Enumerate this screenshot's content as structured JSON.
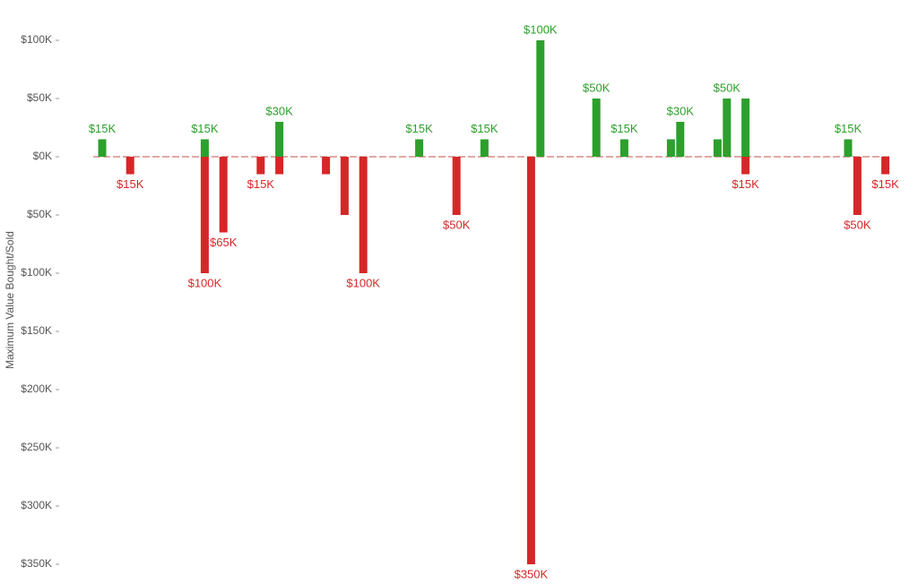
{
  "chart_data": {
    "type": "bar",
    "y_label": "Maximum Value Bought/Sold",
    "categories": [
      null,
      null,
      null,
      null,
      null,
      null,
      null,
      null,
      null,
      null,
      null,
      null,
      null,
      null,
      null,
      null,
      null,
      null,
      null,
      null,
      null,
      null,
      null,
      null,
      null,
      null,
      null,
      null,
      null,
      null,
      null,
      null,
      null,
      null,
      null,
      null,
      null,
      null,
      null,
      null,
      null,
      null,
      null,
      null,
      null,
      null,
      null,
      null,
      null,
      null,
      null,
      null,
      null,
      null,
      null,
      null,
      null,
      null,
      null,
      null,
      null,
      null,
      null,
      null,
      null,
      null,
      null,
      null,
      null,
      null,
      null,
      null,
      null,
      null,
      null,
      null,
      null,
      null,
      null,
      null,
      null,
      null,
      null,
      null,
      null
    ],
    "series": [
      {
        "color": "#2ca02c",
        "values": [
          15000,
          null,
          null,
          null,
          null,
          null,
          null,
          null,
          null,
          null,
          null,
          15000,
          null,
          null,
          null,
          null,
          null,
          null,
          null,
          30000,
          null,
          null,
          null,
          null,
          null,
          null,
          null,
          null,
          null,
          null,
          null,
          null,
          null,
          null,
          15000,
          null,
          null,
          null,
          null,
          null,
          null,
          15000,
          null,
          null,
          null,
          null,
          null,
          100000,
          null,
          null,
          null,
          null,
          null,
          50000,
          null,
          null,
          15000,
          null,
          null,
          null,
          null,
          15000,
          30000,
          null,
          null,
          null,
          15000,
          50000,
          null,
          50000,
          null,
          null,
          null,
          null,
          null,
          null,
          null,
          null,
          null,
          null,
          15000,
          null,
          null,
          null,
          null
        ],
        "value_labels": [
          "$15K",
          null,
          null,
          null,
          null,
          null,
          null,
          null,
          null,
          null,
          null,
          "$15K",
          null,
          null,
          null,
          null,
          null,
          null,
          null,
          "$30K",
          null,
          null,
          null,
          null,
          null,
          null,
          null,
          null,
          null,
          null,
          null,
          null,
          null,
          null,
          "$15K",
          null,
          null,
          null,
          null,
          null,
          null,
          "$15K",
          null,
          null,
          null,
          null,
          null,
          "$100K",
          null,
          null,
          null,
          null,
          null,
          "$50K",
          null,
          null,
          "$15K",
          null,
          null,
          null,
          null,
          null,
          "$30K",
          null,
          null,
          null,
          null,
          "$50K",
          null,
          null,
          null,
          null,
          null,
          null,
          null,
          null,
          null,
          null,
          null,
          null,
          "$15K",
          null,
          null,
          null,
          null
        ]
      },
      {
        "color": "#d62728",
        "values": [
          null,
          null,
          null,
          -15000,
          null,
          null,
          null,
          null,
          null,
          null,
          null,
          -100000,
          null,
          -65000,
          null,
          null,
          null,
          -15000,
          null,
          -15000,
          null,
          null,
          null,
          null,
          -15000,
          null,
          -50000,
          null,
          -100000,
          null,
          null,
          null,
          null,
          null,
          null,
          null,
          null,
          null,
          -50000,
          null,
          null,
          null,
          null,
          null,
          null,
          null,
          -350000,
          null,
          null,
          null,
          null,
          null,
          null,
          null,
          null,
          null,
          null,
          null,
          null,
          null,
          null,
          null,
          null,
          null,
          null,
          null,
          null,
          null,
          null,
          -15000,
          null,
          null,
          null,
          null,
          null,
          null,
          null,
          null,
          null,
          null,
          null,
          -50000,
          null,
          null,
          -15000
        ],
        "value_labels": [
          null,
          null,
          null,
          "$15K",
          null,
          null,
          null,
          null,
          null,
          null,
          null,
          "$100K",
          null,
          "$65K",
          null,
          null,
          null,
          "$15K",
          null,
          null,
          null,
          null,
          null,
          null,
          null,
          null,
          null,
          null,
          "$100K",
          null,
          null,
          null,
          null,
          null,
          null,
          null,
          null,
          null,
          "$50K",
          null,
          null,
          null,
          null,
          null,
          null,
          null,
          "$350K",
          null,
          null,
          null,
          null,
          null,
          null,
          null,
          null,
          null,
          null,
          null,
          null,
          null,
          null,
          null,
          null,
          null,
          null,
          null,
          null,
          null,
          null,
          "$15K",
          null,
          null,
          null,
          null,
          null,
          null,
          null,
          null,
          null,
          null,
          null,
          "$50K",
          null,
          null,
          "$15K"
        ]
      }
    ],
    "ylim": [
      -355000,
      105000
    ],
    "yticks": [
      {
        "value": 100000,
        "label": "$100K"
      },
      {
        "value": 50000,
        "label": "$50K"
      },
      {
        "value": 0,
        "label": "$0K"
      },
      {
        "value": -50000,
        "label": "$50K"
      },
      {
        "value": -100000,
        "label": "$100K"
      },
      {
        "value": -150000,
        "label": "$150K"
      },
      {
        "value": -200000,
        "label": "$200K"
      },
      {
        "value": -250000,
        "label": "$250K"
      },
      {
        "value": -300000,
        "label": "$300K"
      },
      {
        "value": -350000,
        "label": "$350K"
      }
    ]
  }
}
